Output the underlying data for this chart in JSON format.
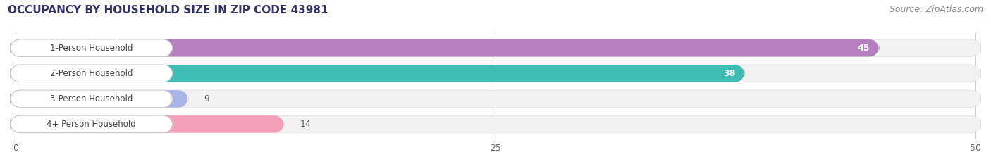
{
  "title": "OCCUPANCY BY HOUSEHOLD SIZE IN ZIP CODE 43981",
  "source": "Source: ZipAtlas.com",
  "categories": [
    "1-Person Household",
    "2-Person Household",
    "3-Person Household",
    "4+ Person Household"
  ],
  "values": [
    45,
    38,
    9,
    14
  ],
  "bar_colors": [
    "#b57fbf",
    "#3dbcb4",
    "#a8b4e8",
    "#f4a0b8"
  ],
  "bar_bg_colors": [
    "#e8d8f0",
    "#cceced",
    "#dde0f5",
    "#fad5e2"
  ],
  "xlim": [
    0,
    50
  ],
  "xticks": [
    0,
    25,
    50
  ],
  "label_colors": [
    "white",
    "white",
    "black",
    "black"
  ],
  "title_fontsize": 11,
  "source_fontsize": 9,
  "tick_fontsize": 9,
  "bar_label_fontsize": 9,
  "category_fontsize": 8.5,
  "bar_height": 0.68,
  "background_color": "#ffffff",
  "row_bg_color": "#f0f0f0"
}
